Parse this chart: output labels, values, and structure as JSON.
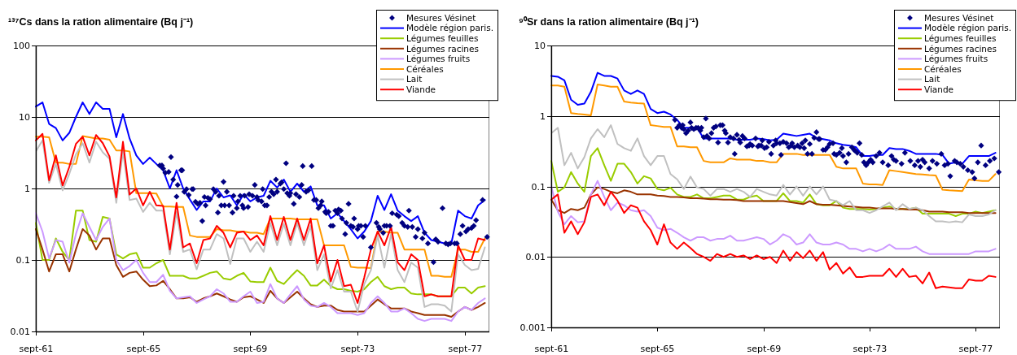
{
  "chart_data": [
    {
      "type": "line",
      "title": "¹³⁷Cs dans la ration alimentaire (Bq j⁻¹)",
      "x": [
        "1961-09",
        "1961-12",
        "1962-03",
        "1962-06",
        "1962-09",
        "1962-12",
        "1963-03",
        "1963-06",
        "1963-09",
        "1963-12",
        "1964-03",
        "1964-06",
        "1964-09",
        "1964-12",
        "1965-03",
        "1965-06",
        "1965-09",
        "1965-12",
        "1966-03",
        "1966-06",
        "1966-09",
        "1966-12",
        "1967-03",
        "1967-06",
        "1967-09",
        "1967-12",
        "1968-03",
        "1968-06",
        "1968-09",
        "1968-12",
        "1969-03",
        "1969-06",
        "1969-09",
        "1969-12",
        "1970-03",
        "1970-06",
        "1970-09",
        "1970-12",
        "1971-03",
        "1971-06",
        "1971-09",
        "1971-12",
        "1972-03",
        "1972-06",
        "1972-09",
        "1972-12",
        "1973-03",
        "1973-06",
        "1973-09",
        "1973-12",
        "1974-03",
        "1974-06",
        "1974-09",
        "1974-12",
        "1975-03",
        "1975-06",
        "1975-09",
        "1975-12",
        "1976-03",
        "1976-06",
        "1976-09",
        "1976-12",
        "1977-03",
        "1977-06",
        "1977-09",
        "1977-12",
        "1978-03",
        "1978-06"
      ],
      "xlim": [
        "1961-09",
        "1978-08"
      ],
      "xticks": [
        {
          "value": "1961-09",
          "label": "sept-61"
        },
        {
          "value": "1965-09",
          "label": "sept-65"
        },
        {
          "value": "1969-09",
          "label": "sept-69"
        },
        {
          "value": "1973-09",
          "label": "sept-73"
        },
        {
          "value": "1977-09",
          "label": "sept-77"
        }
      ],
      "ylim": [
        0.01,
        100
      ],
      "yticks": [
        0.01,
        0.1,
        1,
        10,
        100
      ],
      "log": true,
      "grid": "y",
      "legend": "top right",
      "series": [
        {
          "name": "Mesures Vésinet",
          "type": "scatter",
          "marker": "diamond",
          "color": "#000080",
          "x": [
            "1966-04-16",
            "1966-05-16",
            "1966-06-01",
            "1966-07-01",
            "1966-08-16",
            "1966-09-16",
            "1966-10-16",
            "1966-12-01",
            "1966-12-16",
            "1967-02-01",
            "1967-02-16",
            "1967-03-16",
            "1967-04-16",
            "1967-05-16",
            "1967-07-01",
            "1967-07-16",
            "1967-08-16",
            "1967-09-16",
            "1967-10-16",
            "1967-11-16",
            "1967-12-16",
            "1968-01-01",
            "1968-02-01",
            "1968-03-01",
            "1968-04-16",
            "1968-05-16",
            "1968-06-16",
            "1968-07-01",
            "1968-08-01",
            "1968-09-01",
            "1968-09-16",
            "1968-10-16",
            "1968-11-16",
            "1969-01-01",
            "1969-01-16",
            "1969-03-01",
            "1969-03-16",
            "1969-04-16",
            "1969-05-16",
            "1969-06-01",
            "1969-06-16",
            "1969-08-01",
            "1969-08-16",
            "1969-10-01",
            "1969-11-01",
            "1969-12-01",
            "1969-12-16",
            "1970-02-01",
            "1970-02-16",
            "1970-03-16",
            "1970-04-16",
            "1970-05-16",
            "1970-06-16",
            "1970-07-16",
            "1970-08-16",
            "1970-09-01",
            "1970-10-16",
            "1970-11-01",
            "1970-12-01",
            "1971-01-01",
            "1971-01-16",
            "1971-02-16",
            "1971-03-01",
            "1971-04-16",
            "1971-05-16",
            "1971-07-01",
            "1971-08-01",
            "1971-08-16",
            "1971-10-01",
            "1971-11-01",
            "1971-12-16",
            "1972-01-16",
            "1972-02-16",
            "1972-03-16",
            "1972-04-16",
            "1972-05-01",
            "1972-06-16",
            "1972-07-01",
            "1972-08-01",
            "1972-09-01",
            "1972-10-01",
            "1972-11-01",
            "1972-12-01",
            "1972-12-16",
            "1973-01-16",
            "1973-02-01",
            "1973-03-16",
            "1973-04-01",
            "1973-05-01",
            "1973-06-01",
            "1973-07-01",
            "1973-07-16",
            "1973-09-01",
            "1973-09-16",
            "1973-10-16",
            "1973-11-16",
            "1973-12-16",
            "1974-03-01",
            "1974-05-16",
            "1974-06-16",
            "1974-07-01",
            "1974-08-16",
            "1974-09-01",
            "1974-10-01",
            "1974-11-16",
            "1974-12-16",
            "1975-02-16",
            "1975-03-16",
            "1975-05-01",
            "1975-06-01",
            "1975-07-16",
            "1975-08-01",
            "1975-09-16",
            "1975-11-01",
            "1975-12-01",
            "1976-02-01",
            "1976-03-01",
            "1976-04-16",
            "1976-07-01",
            "1976-08-01",
            "1976-09-01",
            "1976-11-01",
            "1976-12-16",
            "1977-01-16",
            "1977-02-16",
            "1977-04-16",
            "1977-05-16",
            "1977-07-01",
            "1977-08-01",
            "1977-09-16",
            "1977-10-16",
            "1977-12-01",
            "1978-01-01",
            "1978-02-01",
            "1978-05-01",
            "1978-07-01"
          ],
          "values": [
            2.1,
            2.1,
            1.9,
            1.66,
            1.7,
            2.75,
            1.33,
            0.77,
            1.12,
            1.8,
            1.8,
            0.9,
            0.98,
            0.81,
            0.98,
            0.98,
            0.65,
            0.61,
            0.63,
            0.35,
            0.76,
            0.58,
            0.74,
            0.71,
            0.98,
            0.9,
            0.46,
            0.79,
            0.58,
            1.24,
            0.58,
            0.9,
            0.58,
            0.46,
            0.79,
            0.53,
            0.66,
            0.79,
            0.58,
            0.53,
            0.79,
            0.55,
            0.83,
            0.79,
            1.12,
            0.76,
            0.69,
            0.66,
            0.98,
            0.58,
            0.58,
            0.76,
            0.9,
            0.83,
            1.33,
            0.9,
            1.17,
            1.22,
            0.98,
            2.25,
            0.86,
            0.79,
            0.86,
            0.61,
            0.83,
            0.76,
            1.12,
            2.06,
            0.9,
            0.94,
            2.06,
            0.69,
            0.69,
            0.53,
            0.58,
            0.66,
            0.47,
            0.45,
            0.47,
            0.3,
            0.3,
            0.49,
            0.45,
            0.51,
            0.49,
            0.38,
            0.23,
            0.33,
            0.61,
            0.3,
            0.29,
            0.38,
            0.27,
            0.3,
            0.3,
            0.21,
            0.3,
            0.15,
            0.33,
            0.29,
            0.27,
            0.24,
            0.3,
            0.3,
            0.3,
            0.45,
            0.43,
            0.41,
            0.33,
            0.3,
            0.29,
            0.49,
            0.29,
            0.21,
            0.27,
            0.2,
            0.24,
            0.17,
            0.093,
            0.195,
            0.18,
            0.53,
            0.17,
            0.165,
            0.17,
            0.17,
            0.17,
            0.23,
            0.3,
            0.25,
            0.27,
            0.28,
            0.3,
            0.36,
            0.69,
            0.21
          ]
        },
        {
          "name": "Modèle région paris.",
          "color": "#0000ff",
          "values": [
            14,
            16,
            8,
            7,
            4.7,
            6,
            10,
            16,
            11,
            16,
            13,
            13,
            5.2,
            11,
            5,
            2.9,
            2.2,
            2.7,
            2.2,
            1.8,
            1,
            1.8,
            1,
            0.7,
            0.5,
            0.66,
            0.66,
            1,
            0.75,
            0.8,
            0.58,
            0.83,
            0.66,
            0.75,
            0.79,
            1.28,
            1.03,
            1.33,
            0.9,
            1.17,
            0.9,
            1.07,
            0.58,
            0.58,
            0.38,
            0.45,
            0.35,
            0.27,
            0.2,
            0.25,
            0.35,
            0.79,
            0.5,
            0.83,
            0.49,
            0.41,
            0.35,
            0.41,
            0.24,
            0.19,
            0.18,
            0.17,
            0.17,
            0.49,
            0.41,
            0.38,
            0.58,
            0.69
          ]
        },
        {
          "name": "Légumes feuilles",
          "color": "#99cc00",
          "values": [
            0.33,
            0.1,
            0.1,
            0.2,
            0.13,
            0.1,
            0.49,
            0.49,
            0.19,
            0.18,
            0.4,
            0.38,
            0.12,
            0.105,
            0.12,
            0.126,
            0.078,
            0.078,
            0.09,
            0.1,
            0.06,
            0.06,
            0.06,
            0.055,
            0.055,
            0.06,
            0.066,
            0.069,
            0.055,
            0.053,
            0.06,
            0.066,
            0.05,
            0.049,
            0.049,
            0.078,
            0.051,
            0.046,
            0.058,
            0.072,
            0.06,
            0.044,
            0.044,
            0.053,
            0.043,
            0.039,
            0.039,
            0.037,
            0.036,
            0.039,
            0.049,
            0.058,
            0.043,
            0.039,
            0.041,
            0.041,
            0.034,
            0.033,
            0.033,
            0.033,
            0.031,
            0.031,
            0.031,
            0.041,
            0.041,
            0.034,
            0.041,
            0.043
          ]
        },
        {
          "name": "Légumes racines",
          "color": "#993300",
          "values": [
            0.27,
            0.14,
            0.069,
            0.12,
            0.12,
            0.069,
            0.14,
            0.27,
            0.22,
            0.14,
            0.2,
            0.2,
            0.085,
            0.058,
            0.066,
            0.069,
            0.053,
            0.043,
            0.044,
            0.051,
            0.039,
            0.029,
            0.029,
            0.03,
            0.026,
            0.029,
            0.031,
            0.034,
            0.031,
            0.028,
            0.026,
            0.03,
            0.031,
            0.028,
            0.025,
            0.037,
            0.029,
            0.025,
            0.03,
            0.036,
            0.029,
            0.024,
            0.022,
            0.023,
            0.023,
            0.02,
            0.019,
            0.019,
            0.019,
            0.019,
            0.023,
            0.028,
            0.024,
            0.021,
            0.021,
            0.021,
            0.019,
            0.018,
            0.017,
            0.017,
            0.017,
            0.017,
            0.016,
            0.019,
            0.022,
            0.02,
            0.022,
            0.025
          ]
        },
        {
          "name": "Légumes fruits",
          "color": "#cc99ff",
          "values": [
            0.45,
            0.25,
            0.105,
            0.19,
            0.18,
            0.092,
            0.23,
            0.45,
            0.29,
            0.19,
            0.29,
            0.38,
            0.1,
            0.072,
            0.082,
            0.1,
            0.066,
            0.049,
            0.049,
            0.062,
            0.037,
            0.029,
            0.03,
            0.031,
            0.025,
            0.028,
            0.031,
            0.039,
            0.034,
            0.026,
            0.026,
            0.031,
            0.036,
            0.025,
            0.026,
            0.046,
            0.029,
            0.025,
            0.033,
            0.043,
            0.028,
            0.023,
            0.022,
            0.025,
            0.022,
            0.018,
            0.018,
            0.018,
            0.017,
            0.018,
            0.025,
            0.031,
            0.025,
            0.019,
            0.019,
            0.021,
            0.018,
            0.015,
            0.014,
            0.015,
            0.015,
            0.015,
            0.014,
            0.019,
            0.022,
            0.02,
            0.025,
            0.029
          ]
        },
        {
          "name": "Céréales",
          "color": "#ff9900",
          "values": [
            5.3,
            5.3,
            5.2,
            2.3,
            2.3,
            2.2,
            2.2,
            5.4,
            5.2,
            5,
            5,
            4.8,
            3.4,
            3.4,
            3.3,
            0.86,
            0.86,
            0.86,
            0.85,
            0.56,
            0.56,
            0.55,
            0.55,
            0.22,
            0.21,
            0.21,
            0.21,
            0.27,
            0.26,
            0.26,
            0.25,
            0.25,
            0.24,
            0.24,
            0.23,
            0.38,
            0.38,
            0.38,
            0.38,
            0.37,
            0.37,
            0.37,
            0.37,
            0.16,
            0.16,
            0.16,
            0.16,
            0.08,
            0.078,
            0.078,
            0.077,
            0.25,
            0.25,
            0.24,
            0.24,
            0.14,
            0.14,
            0.14,
            0.14,
            0.06,
            0.06,
            0.058,
            0.058,
            0.14,
            0.14,
            0.13,
            0.13,
            0.2
          ]
        },
        {
          "name": "Lait",
          "color": "#c0c0c0",
          "values": [
            3.3,
            4.7,
            1.2,
            2.2,
            0.94,
            1.6,
            3,
            4.3,
            2.3,
            4.5,
            3.2,
            2.6,
            0.63,
            3.3,
            0.69,
            0.72,
            0.47,
            0.63,
            0.49,
            0.49,
            0.12,
            0.47,
            0.13,
            0.14,
            0.074,
            0.14,
            0.14,
            0.23,
            0.2,
            0.088,
            0.2,
            0.2,
            0.13,
            0.18,
            0.13,
            0.33,
            0.16,
            0.32,
            0.16,
            0.33,
            0.16,
            0.3,
            0.072,
            0.12,
            0.04,
            0.072,
            0.036,
            0.036,
            0.019,
            0.046,
            0.072,
            0.22,
            0.078,
            0.23,
            0.072,
            0.049,
            0.092,
            0.078,
            0.022,
            0.024,
            0.024,
            0.023,
            0.019,
            0.12,
            0.085,
            0.072,
            0.075,
            0.15
          ]
        },
        {
          "name": "Viande",
          "color": "#ff0000",
          "values": [
            4.7,
            5.8,
            1.3,
            2.9,
            1.1,
            2,
            4.2,
            5.3,
            2.9,
            5.6,
            4.3,
            2.8,
            0.75,
            4.5,
            0.82,
            1,
            0.58,
            0.9,
            0.58,
            0.57,
            0.14,
            0.63,
            0.15,
            0.17,
            0.09,
            0.19,
            0.2,
            0.3,
            0.24,
            0.15,
            0.24,
            0.25,
            0.19,
            0.22,
            0.16,
            0.41,
            0.19,
            0.4,
            0.19,
            0.38,
            0.19,
            0.38,
            0.09,
            0.16,
            0.05,
            0.1,
            0.043,
            0.045,
            0.025,
            0.057,
            0.14,
            0.25,
            0.16,
            0.29,
            0.093,
            0.072,
            0.12,
            0.1,
            0.031,
            0.033,
            0.031,
            0.031,
            0.031,
            0.16,
            0.1,
            0.1,
            0.2,
            0.19
          ]
        }
      ]
    },
    {
      "type": "line",
      "title": "⁹⁰Sr dans la ration alimentaire (Bq j⁻¹)",
      "x": [
        "1961-09",
        "1961-12",
        "1962-03",
        "1962-06",
        "1962-09",
        "1962-12",
        "1963-03",
        "1963-06",
        "1963-09",
        "1963-12",
        "1964-03",
        "1964-06",
        "1964-09",
        "1964-12",
        "1965-03",
        "1965-06",
        "1965-09",
        "1965-12",
        "1966-03",
        "1966-06",
        "1966-09",
        "1966-12",
        "1967-03",
        "1967-06",
        "1967-09",
        "1967-12",
        "1968-03",
        "1968-06",
        "1968-09",
        "1968-12",
        "1969-03",
        "1969-06",
        "1969-09",
        "1969-12",
        "1970-03",
        "1970-06",
        "1970-09",
        "1970-12",
        "1971-03",
        "1971-06",
        "1971-09",
        "1971-12",
        "1972-03",
        "1972-06",
        "1972-09",
        "1972-12",
        "1973-03",
        "1973-06",
        "1973-09",
        "1973-12",
        "1974-03",
        "1974-06",
        "1974-09",
        "1974-12",
        "1975-03",
        "1975-06",
        "1975-09",
        "1975-12",
        "1976-03",
        "1976-06",
        "1976-09",
        "1976-12",
        "1977-03",
        "1977-06",
        "1977-09",
        "1977-12",
        "1978-03",
        "1978-06"
      ],
      "xlim": [
        "1961-09",
        "1978-08"
      ],
      "xticks": [
        {
          "value": "1961-09",
          "label": "sept-61"
        },
        {
          "value": "1965-09",
          "label": "sept-65"
        },
        {
          "value": "1969-09",
          "label": "sept-69"
        },
        {
          "value": "1973-09",
          "label": "sept-73"
        },
        {
          "value": "1977-09",
          "label": "sept-77"
        }
      ],
      "ylim": [
        0.001,
        10
      ],
      "yticks": [
        0.001,
        0.01,
        0.1,
        1,
        10
      ],
      "log": true,
      "grid": "y",
      "legend": "top right",
      "series": [
        {
          "name": "Mesures Vésinet",
          "type": "scatter",
          "marker": "diamond",
          "color": "#000080",
          "x": [
            "1966-05-01",
            "1966-06-01",
            "1966-07-01",
            "1966-08-01",
            "1966-08-16",
            "1966-09-01",
            "1966-10-01",
            "1966-11-01",
            "1966-12-01",
            "1966-12-16",
            "1967-01-16",
            "1967-02-16",
            "1967-03-16",
            "1967-04-16",
            "1967-05-01",
            "1967-06-01",
            "1967-07-01",
            "1967-07-16",
            "1967-08-16",
            "1967-09-16",
            "1967-10-16",
            "1967-11-16",
            "1967-12-16",
            "1968-01-16",
            "1968-02-16",
            "1968-03-16",
            "1968-04-01",
            "1968-05-01",
            "1968-06-01",
            "1968-07-16",
            "1968-08-01",
            "1968-09-01",
            "1968-10-01",
            "1968-10-16",
            "1968-11-16",
            "1968-12-16",
            "1969-01-16",
            "1969-02-16",
            "1969-03-01",
            "1969-04-01",
            "1969-05-16",
            "1969-06-16",
            "1969-07-01",
            "1969-08-01",
            "1969-08-16",
            "1969-09-16",
            "1969-10-16",
            "1969-11-16",
            "1969-12-16",
            "1970-01-16",
            "1970-02-16",
            "1970-03-01",
            "1970-04-16",
            "1970-05-01",
            "1970-06-01",
            "1970-07-16",
            "1970-08-16",
            "1970-09-16",
            "1970-10-01",
            "1970-11-01",
            "1970-12-16",
            "1971-01-16",
            "1971-02-16",
            "1971-03-16",
            "1971-04-01",
            "1971-05-01",
            "1971-06-01",
            "1971-07-01",
            "1971-08-01",
            "1971-09-01",
            "1971-10-01",
            "1971-10-16",
            "1971-12-01",
            "1972-01-01",
            "1972-02-01",
            "1972-03-01",
            "1972-04-16",
            "1972-05-01",
            "1972-06-01",
            "1972-07-16",
            "1972-08-16",
            "1972-09-01",
            "1972-10-16",
            "1972-11-16",
            "1973-01-01",
            "1973-02-01",
            "1973-02-16",
            "1973-03-16",
            "1973-04-16",
            "1973-05-16",
            "1973-06-16",
            "1973-07-16",
            "1973-08-16",
            "1973-09-16",
            "1973-10-16",
            "1973-12-01",
            "1974-01-16",
            "1974-03-01",
            "1974-05-16",
            "1974-07-01",
            "1974-08-01",
            "1974-09-01",
            "1974-11-16",
            "1975-01-01",
            "1975-03-16",
            "1975-05-16",
            "1975-07-01",
            "1975-08-01",
            "1975-09-01",
            "1975-10-01",
            "1975-12-01",
            "1976-01-16",
            "1976-03-16",
            "1976-05-16",
            "1976-07-01",
            "1976-08-16",
            "1976-09-16",
            "1976-11-16",
            "1976-12-16",
            "1977-02-01",
            "1977-03-16",
            "1977-05-16",
            "1977-07-16",
            "1977-08-16",
            "1977-10-01",
            "1977-11-16",
            "1978-01-16",
            "1978-03-16",
            "1978-05-16",
            "1978-07-16"
          ],
          "values": [
            0.88,
            0.68,
            0.74,
            0.68,
            0.74,
            0.65,
            0.57,
            0.62,
            0.81,
            0.68,
            0.65,
            0.68,
            0.68,
            0.62,
            0.68,
            0.5,
            0.92,
            0.52,
            0.48,
            0.57,
            0.68,
            0.71,
            0.42,
            0.74,
            0.74,
            0.62,
            0.57,
            0.42,
            0.5,
            0.48,
            0.29,
            0.54,
            0.46,
            0.42,
            0.52,
            0.48,
            0.37,
            0.38,
            0.4,
            0.38,
            0.48,
            0.37,
            0.38,
            0.38,
            0.45,
            0.35,
            0.36,
            0.43,
            0.29,
            0.38,
            0.45,
            0.41,
            0.41,
            0.28,
            0.43,
            0.41,
            0.36,
            0.38,
            0.41,
            0.36,
            0.38,
            0.36,
            0.41,
            0.35,
            0.45,
            0.29,
            0.4,
            0.29,
            0.49,
            0.59,
            0.47,
            0.47,
            0.33,
            0.33,
            0.36,
            0.4,
            0.41,
            0.29,
            0.28,
            0.3,
            0.35,
            0.27,
            0.22,
            0.29,
            0.36,
            0.33,
            0.32,
            0.3,
            0.41,
            0.28,
            0.22,
            0.2,
            0.22,
            0.24,
            0.22,
            0.27,
            0.3,
            0.22,
            0.2,
            0.27,
            0.24,
            0.23,
            0.21,
            0.3,
            0.23,
            0.2,
            0.23,
            0.19,
            0.24,
            0.22,
            0.18,
            0.23,
            0.21,
            0.29,
            0.2,
            0.21,
            0.14,
            0.23,
            0.22,
            0.21,
            0.19,
            0.17,
            0.16,
            0.13,
            0.22,
            0.38,
            0.2,
            0.23,
            0.25,
            0.16
          ]
        },
        {
          "name": "Modèle région paris.",
          "color": "#0000ff",
          "values": [
            3.7,
            3.6,
            3.2,
            1.7,
            1.44,
            1.5,
            2.2,
            4.1,
            3.7,
            3.7,
            3.4,
            2.3,
            2.05,
            2.3,
            2.05,
            1.26,
            1.1,
            1.15,
            1.05,
            0.88,
            0.68,
            0.68,
            0.68,
            0.48,
            0.48,
            0.48,
            0.48,
            0.48,
            0.46,
            0.46,
            0.46,
            0.48,
            0.47,
            0.45,
            0.46,
            0.56,
            0.54,
            0.52,
            0.54,
            0.56,
            0.49,
            0.47,
            0.45,
            0.41,
            0.39,
            0.38,
            0.36,
            0.27,
            0.27,
            0.28,
            0.28,
            0.35,
            0.34,
            0.34,
            0.32,
            0.29,
            0.29,
            0.29,
            0.29,
            0.28,
            0.21,
            0.22,
            0.21,
            0.27,
            0.27,
            0.27,
            0.27,
            0.3
          ]
        },
        {
          "name": "Légumes feuilles",
          "color": "#99cc00",
          "values": [
            0.23,
            0.084,
            0.097,
            0.16,
            0.11,
            0.084,
            0.27,
            0.35,
            0.2,
            0.12,
            0.21,
            0.21,
            0.16,
            0.11,
            0.14,
            0.13,
            0.092,
            0.088,
            0.096,
            0.077,
            0.071,
            0.071,
            0.077,
            0.068,
            0.068,
            0.071,
            0.074,
            0.074,
            0.065,
            0.065,
            0.071,
            0.074,
            0.062,
            0.062,
            0.062,
            0.08,
            0.062,
            0.062,
            0.059,
            0.077,
            0.056,
            0.054,
            0.054,
            0.062,
            0.05,
            0.048,
            0.048,
            0.048,
            0.047,
            0.048,
            0.05,
            0.052,
            0.048,
            0.048,
            0.048,
            0.05,
            0.041,
            0.041,
            0.041,
            0.041,
            0.041,
            0.038,
            0.041,
            0.041,
            0.044,
            0.042,
            0.044,
            0.046
          ]
        },
        {
          "name": "Légumes racines",
          "color": "#993300",
          "values": [
            0.065,
            0.046,
            0.042,
            0.048,
            0.046,
            0.05,
            0.077,
            0.097,
            0.092,
            0.084,
            0.08,
            0.088,
            0.084,
            0.077,
            0.077,
            0.077,
            0.074,
            0.073,
            0.071,
            0.071,
            0.07,
            0.068,
            0.068,
            0.067,
            0.066,
            0.066,
            0.065,
            0.065,
            0.064,
            0.062,
            0.062,
            0.062,
            0.062,
            0.062,
            0.062,
            0.062,
            0.06,
            0.058,
            0.056,
            0.062,
            0.056,
            0.055,
            0.055,
            0.054,
            0.053,
            0.052,
            0.051,
            0.05,
            0.05,
            0.049,
            0.049,
            0.049,
            0.048,
            0.048,
            0.047,
            0.047,
            0.046,
            0.044,
            0.044,
            0.044,
            0.043,
            0.043,
            0.043,
            0.042,
            0.042,
            0.042,
            0.042,
            0.042
          ]
        },
        {
          "name": "Légumes fruits",
          "color": "#cc99ff",
          "values": [
            0.1,
            0.044,
            0.029,
            0.038,
            0.031,
            0.032,
            0.077,
            0.12,
            0.071,
            0.046,
            0.059,
            0.054,
            0.046,
            0.044,
            0.046,
            0.038,
            0.026,
            0.024,
            0.025,
            0.022,
            0.019,
            0.017,
            0.019,
            0.019,
            0.017,
            0.018,
            0.018,
            0.02,
            0.017,
            0.017,
            0.018,
            0.019,
            0.018,
            0.015,
            0.017,
            0.021,
            0.019,
            0.015,
            0.016,
            0.021,
            0.016,
            0.015,
            0.015,
            0.016,
            0.015,
            0.013,
            0.013,
            0.012,
            0.013,
            0.012,
            0.013,
            0.015,
            0.013,
            0.013,
            0.013,
            0.014,
            0.012,
            0.011,
            0.011,
            0.011,
            0.011,
            0.011,
            0.011,
            0.011,
            0.012,
            0.012,
            0.012,
            0.013
          ]
        },
        {
          "name": "Céréales",
          "color": "#ff9900",
          "values": [
            2.7,
            2.7,
            2.6,
            1.1,
            1.07,
            1.05,
            1.02,
            2.8,
            2.7,
            2.6,
            2.6,
            1.6,
            1.55,
            1.52,
            1.5,
            0.74,
            0.72,
            0.7,
            0.7,
            0.37,
            0.37,
            0.36,
            0.36,
            0.23,
            0.22,
            0.22,
            0.22,
            0.25,
            0.24,
            0.24,
            0.24,
            0.23,
            0.23,
            0.22,
            0.22,
            0.29,
            0.29,
            0.29,
            0.28,
            0.28,
            0.28,
            0.28,
            0.28,
            0.19,
            0.18,
            0.18,
            0.18,
            0.11,
            0.107,
            0.107,
            0.105,
            0.17,
            0.165,
            0.16,
            0.155,
            0.15,
            0.148,
            0.145,
            0.143,
            0.09,
            0.088,
            0.087,
            0.086,
            0.125,
            0.122,
            0.12,
            0.12,
            0.15
          ]
        },
        {
          "name": "Lait",
          "color": "#c0c0c0",
          "values": [
            0.57,
            0.68,
            0.2,
            0.3,
            0.18,
            0.26,
            0.48,
            0.65,
            0.5,
            0.74,
            0.4,
            0.35,
            0.32,
            0.48,
            0.27,
            0.2,
            0.27,
            0.27,
            0.15,
            0.126,
            0.092,
            0.138,
            0.097,
            0.092,
            0.074,
            0.092,
            0.092,
            0.084,
            0.092,
            0.084,
            0.071,
            0.092,
            0.084,
            0.077,
            0.074,
            0.105,
            0.077,
            0.1,
            0.074,
            0.1,
            0.077,
            0.1,
            0.065,
            0.062,
            0.054,
            0.062,
            0.046,
            0.046,
            0.042,
            0.046,
            0.052,
            0.059,
            0.046,
            0.056,
            0.048,
            0.05,
            0.046,
            0.038,
            0.032,
            0.032,
            0.031,
            0.032,
            0.031,
            0.04,
            0.038,
            0.038,
            0.04,
            0.046
          ]
        },
        {
          "name": "Viande",
          "color": "#ff0000",
          "values": [
            0.065,
            0.077,
            0.022,
            0.032,
            0.021,
            0.031,
            0.071,
            0.077,
            0.054,
            0.084,
            0.063,
            0.042,
            0.054,
            0.05,
            0.032,
            0.024,
            0.015,
            0.029,
            0.016,
            0.013,
            0.016,
            0.0134,
            0.011,
            0.01,
            0.0088,
            0.011,
            0.01,
            0.011,
            0.01,
            0.0105,
            0.0093,
            0.0105,
            0.0093,
            0.01,
            0.0082,
            0.0123,
            0.0088,
            0.0117,
            0.0096,
            0.0123,
            0.0088,
            0.0117,
            0.0066,
            0.0082,
            0.0058,
            0.0071,
            0.0052,
            0.0052,
            0.0054,
            0.0054,
            0.0054,
            0.0068,
            0.0052,
            0.0068,
            0.0052,
            0.0054,
            0.0042,
            0.006,
            0.0036,
            0.0038,
            0.0037,
            0.0036,
            0.0036,
            0.0048,
            0.0046,
            0.0046,
            0.0054,
            0.0052
          ]
        }
      ]
    }
  ]
}
